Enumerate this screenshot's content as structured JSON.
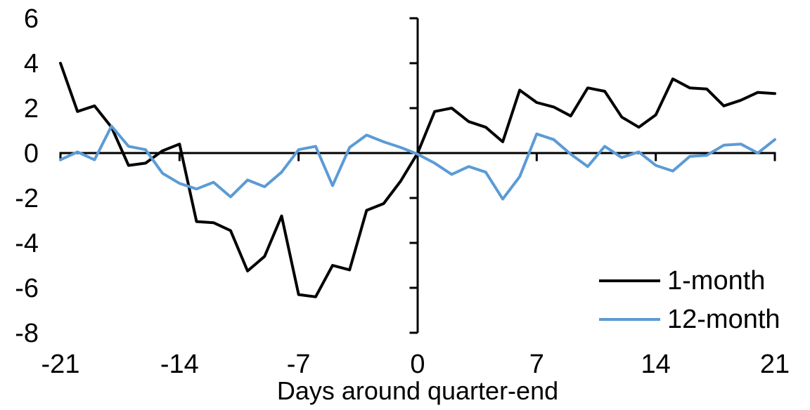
{
  "chart_data": {
    "type": "line",
    "title": "",
    "xlabel": "Days around quarter-end",
    "ylabel": "",
    "x": [
      -21,
      -20,
      -19,
      -18,
      -17,
      -16,
      -15,
      -14,
      -13,
      -12,
      -11,
      -10,
      -9,
      -8,
      -7,
      -6,
      -5,
      -4,
      -3,
      -2,
      -1,
      0,
      1,
      2,
      3,
      4,
      5,
      6,
      7,
      8,
      9,
      10,
      11,
      12,
      13,
      14,
      15,
      16,
      17,
      18,
      19,
      20,
      21
    ],
    "series": [
      {
        "name": "1-month",
        "color": "#000000",
        "values": [
          4.0,
          1.85,
          2.1,
          1.15,
          -0.55,
          -0.45,
          0.1,
          0.4,
          -3.05,
          -3.1,
          -3.45,
          -5.25,
          -4.6,
          -2.8,
          -6.3,
          -6.4,
          -5.0,
          -5.2,
          -2.55,
          -2.25,
          -1.25,
          0.0,
          1.85,
          2.0,
          1.4,
          1.15,
          0.5,
          2.8,
          2.25,
          2.05,
          1.65,
          2.9,
          2.75,
          1.6,
          1.15,
          1.7,
          3.3,
          2.9,
          2.85,
          2.1,
          2.35,
          2.7,
          2.65
        ]
      },
      {
        "name": "12-month",
        "color": "#5B9BD5",
        "values": [
          -0.3,
          0.05,
          -0.3,
          1.2,
          0.3,
          0.15,
          -0.9,
          -1.35,
          -1.6,
          -1.3,
          -1.95,
          -1.2,
          -1.5,
          -0.85,
          0.15,
          0.3,
          -1.45,
          0.25,
          0.8,
          0.5,
          0.25,
          -0.05,
          -0.45,
          -0.95,
          -0.6,
          -0.85,
          -2.05,
          -1.05,
          0.85,
          0.6,
          -0.05,
          -0.6,
          0.3,
          -0.2,
          0.05,
          -0.55,
          -0.8,
          -0.15,
          -0.1,
          0.35,
          0.4,
          0.0,
          0.6
        ]
      }
    ],
    "xlim": [
      -21,
      21
    ],
    "ylim": [
      -8,
      6
    ],
    "x_ticks": [
      -21,
      -14,
      -7,
      0,
      7,
      14,
      21
    ],
    "y_ticks": [
      6,
      4,
      2,
      0,
      -2,
      -4,
      -6,
      -8
    ],
    "grid": false,
    "legend_position": "inside-bottom-right",
    "axis_color": "#000000",
    "background": "#FFFFFF"
  }
}
